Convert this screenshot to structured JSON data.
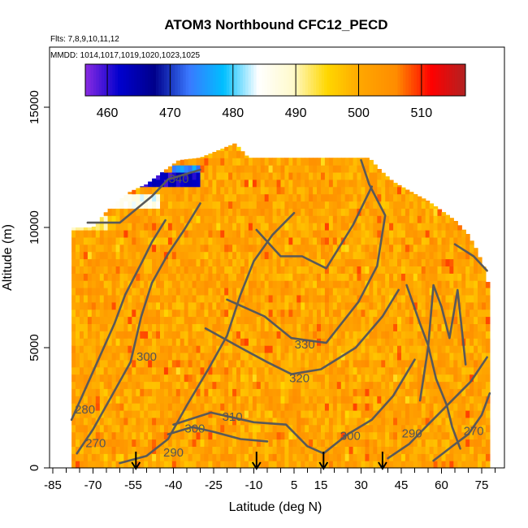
{
  "chart_data": {
    "type": "heatmap",
    "title": "ATOM3 Northbound CFC12_PECD",
    "subtitle_flights": "Flts: 7,8,9,10,11,12",
    "subtitle_dates": "MMDD: 1014,1017,1019,1020,1023,1025",
    "xlabel": "Latitude (deg N)",
    "ylabel": "Altitude (m)",
    "xlim": [
      -85,
      85
    ],
    "ylim": [
      0,
      17500
    ],
    "x_ticks": [
      -85,
      -70,
      -55,
      -40,
      -25,
      -10,
      5,
      15,
      30,
      45,
      60,
      75
    ],
    "x_minor_step": 5,
    "y_ticks": [
      0,
      5000,
      10000,
      15000
    ],
    "colorbar": {
      "range": [
        456.5,
        517
      ],
      "ticks": [
        460,
        470,
        480,
        490,
        500,
        510
      ],
      "colors": [
        "#8a2be2",
        "#0000cd",
        "#00008b",
        "#3a78ff",
        "#00bfff",
        "#ffffff",
        "#fffacd",
        "#ffd700",
        "#ffa500",
        "#ff8c00",
        "#ff0000",
        "#b22222"
      ]
    },
    "profile_markers_lat": [
      -54,
      -9,
      16,
      38
    ],
    "contour_levels": [
      270,
      280,
      290,
      300,
      310,
      320,
      330,
      340
    ],
    "contour_labels": [
      {
        "text": "270",
        "lat": -69,
        "alt": 1000
      },
      {
        "text": "280",
        "lat": -73,
        "alt": 2400
      },
      {
        "text": "290",
        "lat": -40,
        "alt": 600
      },
      {
        "text": "300",
        "lat": -50,
        "alt": 4600
      },
      {
        "text": "300",
        "lat": -32,
        "alt": 1600
      },
      {
        "text": "300",
        "lat": 26,
        "alt": 1300
      },
      {
        "text": "310",
        "lat": -18,
        "alt": 2100
      },
      {
        "text": "320",
        "lat": 7,
        "alt": 3700
      },
      {
        "text": "330",
        "lat": 9,
        "alt": 5100
      },
      {
        "text": "340",
        "lat": -38,
        "alt": 12000
      },
      {
        "text": "290",
        "lat": 49,
        "alt": 1400
      },
      {
        "text": "270",
        "lat": 72,
        "alt": 1500
      }
    ],
    "envelope": [
      {
        "lat": -78,
        "top": 10000
      },
      {
        "lat": -70,
        "top": 10000
      },
      {
        "lat": -64,
        "top": 10800
      },
      {
        "lat": -56,
        "top": 11500
      },
      {
        "lat": -50,
        "top": 11800
      },
      {
        "lat": -43,
        "top": 12400
      },
      {
        "lat": -38,
        "top": 12800
      },
      {
        "lat": -30,
        "top": 12900
      },
      {
        "lat": -17,
        "top": 13500
      },
      {
        "lat": -12,
        "top": 12900
      },
      {
        "lat": 0,
        "top": 12900
      },
      {
        "lat": 20,
        "top": 12900
      },
      {
        "lat": 33,
        "top": 12900
      },
      {
        "lat": 37,
        "top": 12400
      },
      {
        "lat": 42,
        "top": 11900
      },
      {
        "lat": 50,
        "top": 11400
      },
      {
        "lat": 55,
        "top": 11100
      },
      {
        "lat": 60,
        "top": 10700
      },
      {
        "lat": 65,
        "top": 10300
      },
      {
        "lat": 70,
        "top": 9700
      },
      {
        "lat": 73,
        "top": 9100
      },
      {
        "lat": 76,
        "top": 8300
      },
      {
        "lat": 78,
        "top": 7400
      }
    ],
    "anomalies": [
      {
        "lat_from": -52,
        "lat_to": -30,
        "alt_from": 11800,
        "alt_to": 12200,
        "value": 462
      },
      {
        "lat_from": -41,
        "lat_to": -30,
        "alt_from": 12200,
        "alt_to": 12600,
        "value": 475
      },
      {
        "lat_from": -64,
        "lat_to": -45,
        "alt_from": 10700,
        "alt_to": 11500,
        "value": 485
      },
      {
        "lat_from": -78,
        "lat_to": -64,
        "alt_from": 9800,
        "alt_to": 10500,
        "value": 492
      }
    ]
  }
}
